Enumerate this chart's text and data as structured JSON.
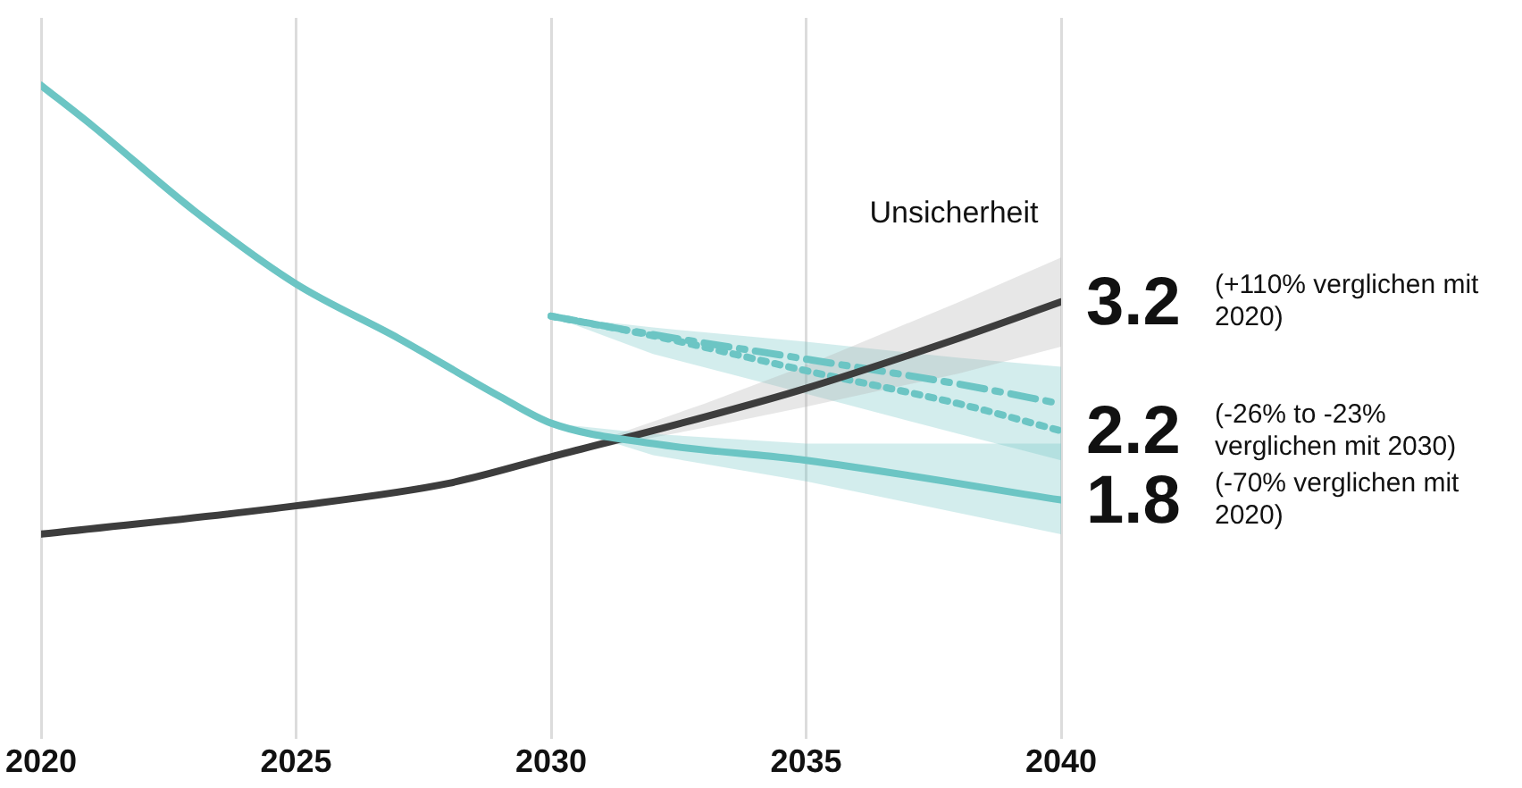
{
  "chart_data": {
    "type": "line",
    "log": "y",
    "ylim": [
      0.9,
      7.3
    ],
    "xlim": [
      2020,
      2040
    ],
    "xticks": [
      2020,
      2025,
      2030,
      2035,
      2040
    ],
    "grid": "x",
    "legend": false,
    "tick_labels": "x",
    "marker": "none",
    "series": [
      {
        "color": "#6cc5c4",
        "x": [
          2020,
          2021,
          2023,
          2025,
          2027,
          2029,
          2030,
          2032,
          2035,
          2040
        ],
        "values": [
          6.0,
          5.34,
          4.17,
          3.37,
          2.88,
          2.43,
          2.25,
          2.12,
          2.02,
          1.8
        ],
        "lower": [
          null,
          null,
          null,
          null,
          null,
          null,
          2.25,
          2.05,
          1.9,
          1.63
        ],
        "upper": [
          null,
          null,
          null,
          null,
          null,
          null,
          2.25,
          2.18,
          2.12,
          2.12
        ],
        "value_labels": [
          null,
          null,
          null,
          null,
          null,
          null,
          null,
          null,
          null,
          "1.8"
        ],
        "line_style": "solid"
      },
      {
        "color": "#3d3d3d",
        "x": [
          2020,
          2025,
          2028,
          2030,
          2033,
          2035,
          2038,
          2040
        ],
        "values": [
          1.63,
          1.77,
          1.89,
          2.04,
          2.29,
          2.49,
          2.88,
          3.2
        ],
        "lower": [
          null,
          null,
          null,
          2.04,
          2.22,
          2.36,
          2.6,
          2.81
        ],
        "upper": [
          null,
          null,
          null,
          2.04,
          2.38,
          2.66,
          3.2,
          3.64
        ],
        "value_labels": [
          null,
          null,
          null,
          null,
          null,
          null,
          null,
          "3.2"
        ],
        "line_style": "solid"
      },
      {
        "color": "#6cc5c4",
        "x": [
          2030,
          2032,
          2035,
          2038,
          2040
        ],
        "values": [
          3.07,
          2.91,
          2.71,
          2.52,
          2.38
        ],
        "lower": [
          3.07,
          2.75,
          2.45,
          2.18,
          2.02
        ],
        "upper": [
          3.07,
          2.97,
          2.85,
          2.72,
          2.65
        ],
        "line_style": "dashed"
      },
      {
        "color": "#6cc5c4",
        "x": [
          2030,
          2032,
          2035,
          2038,
          2040
        ],
        "values": [
          3.07,
          2.9,
          2.62,
          2.38,
          2.2
        ],
        "value_labels": [
          null,
          null,
          null,
          null,
          "2.2"
        ],
        "line_style": "dotted"
      }
    ],
    "annotations": [
      "Unsicherheit",
      "(+110% verglichen mit 2020)",
      "(-26% to -23% verglichen mit 2030)",
      "(-70% verglichen mit 2020)"
    ]
  }
}
